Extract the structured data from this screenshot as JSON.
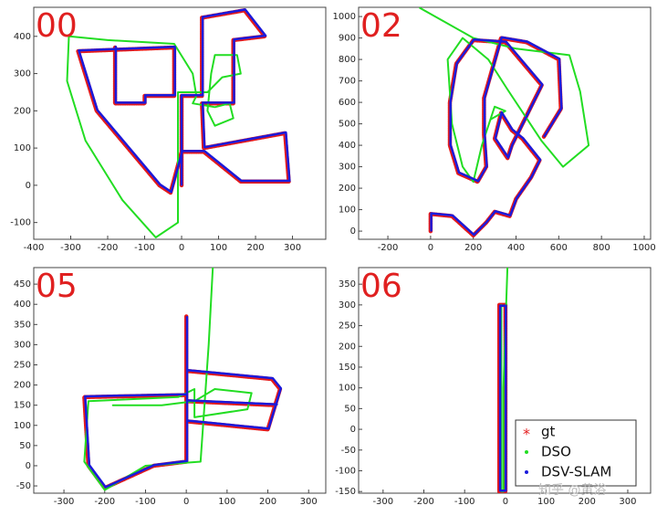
{
  "chart_data": [
    {
      "type": "line",
      "title": "00",
      "xlim": [
        -400,
        390
      ],
      "ylim": [
        -145,
        478
      ],
      "xticks": [
        -400,
        -300,
        -200,
        -100,
        0,
        100,
        200,
        300
      ],
      "yticks": [
        -100,
        0,
        100,
        200,
        300,
        400
      ],
      "series": [
        {
          "name": "gt",
          "color": "#e41a1c",
          "x": [
            0,
            0,
            55,
            55,
            170,
            225,
            140,
            140,
            55,
            60,
            280,
            290,
            160,
            60,
            0,
            -30,
            -60,
            -230,
            -280,
            -20,
            -20,
            -100,
            -100,
            -180,
            -180
          ],
          "values": [
            0,
            240,
            240,
            450,
            470,
            400,
            390,
            220,
            220,
            100,
            140,
            10,
            10,
            90,
            90,
            -20,
            0,
            200,
            360,
            370,
            240,
            240,
            220,
            220,
            370
          ]
        },
        {
          "name": "DSO",
          "color": "#22dd22",
          "x": [
            -70,
            -160,
            -260,
            -310,
            -305,
            -200,
            -20,
            30,
            40,
            30,
            90,
            130,
            140,
            90,
            70,
            80,
            90,
            150,
            160,
            110,
            70,
            -10,
            -10,
            -70
          ],
          "values": [
            -140,
            -40,
            120,
            280,
            400,
            390,
            380,
            300,
            240,
            220,
            210,
            220,
            180,
            160,
            200,
            300,
            350,
            350,
            300,
            290,
            250,
            250,
            -100,
            -140
          ]
        },
        {
          "name": "DSV-SLAM",
          "color": "#1a1adc",
          "x": [
            0,
            0,
            57,
            57,
            172,
            227,
            142,
            142,
            57,
            62,
            282,
            292,
            162,
            62,
            2,
            -28,
            -58,
            -228,
            -278,
            -18,
            -18,
            -98,
            -98,
            -178,
            -178
          ],
          "values": [
            2,
            242,
            242,
            452,
            472,
            402,
            392,
            222,
            222,
            102,
            142,
            12,
            12,
            92,
            92,
            -18,
            2,
            202,
            362,
            372,
            242,
            242,
            222,
            222,
            372
          ]
        }
      ]
    },
    {
      "type": "line",
      "title": "02",
      "xlim": [
        -337,
        1030
      ],
      "ylim": [
        -38,
        1043
      ],
      "xticks": [
        -200,
        0,
        200,
        400,
        600,
        800,
        1000
      ],
      "yticks": [
        0,
        100,
        200,
        300,
        400,
        500,
        600,
        700,
        800,
        900,
        1000
      ],
      "series": [
        {
          "name": "gt",
          "color": "#e41a1c",
          "x": [
            0,
            0,
            100,
            200,
            260,
            300,
            370,
            400,
            470,
            510,
            430,
            380,
            330,
            300,
            360,
            380,
            460,
            520,
            350,
            200,
            120,
            90,
            90,
            130,
            220,
            260,
            250,
            250,
            330,
            450,
            600,
            610,
            530
          ],
          "values": [
            0,
            80,
            70,
            -20,
            40,
            90,
            70,
            150,
            250,
            330,
            430,
            470,
            550,
            430,
            340,
            400,
            560,
            680,
            880,
            890,
            780,
            600,
            400,
            270,
            230,
            300,
            450,
            620,
            900,
            880,
            800,
            570,
            440
          ]
        },
        {
          "name": "DSO",
          "color": "#22dd22",
          "x": [
            -50,
            200,
            400,
            650,
            700,
            740,
            620,
            520,
            360,
            270,
            150,
            80,
            100,
            150,
            200,
            240,
            280,
            300,
            350,
            280
          ],
          "values": [
            1040,
            900,
            850,
            820,
            650,
            400,
            300,
            420,
            660,
            800,
            900,
            800,
            500,
            300,
            230,
            400,
            520,
            580,
            560,
            520
          ]
        },
        {
          "name": "DSV-SLAM",
          "color": "#1a1adc",
          "x": [
            3,
            3,
            103,
            203,
            263,
            303,
            373,
            403,
            473,
            513,
            433,
            383,
            333,
            303,
            363,
            383,
            463,
            523,
            353,
            203,
            123,
            93,
            93,
            133,
            223,
            263,
            253,
            253,
            333,
            453,
            603,
            613,
            533
          ],
          "values": [
            3,
            83,
            73,
            -17,
            43,
            93,
            73,
            153,
            253,
            333,
            433,
            473,
            553,
            433,
            343,
            403,
            563,
            683,
            883,
            893,
            783,
            603,
            403,
            273,
            233,
            303,
            453,
            623,
            903,
            883,
            803,
            573,
            443
          ]
        }
      ]
    },
    {
      "type": "line",
      "title": "05",
      "xlim": [
        -374,
        342
      ],
      "ylim": [
        -68,
        491
      ],
      "xticks": [
        -300,
        -200,
        -100,
        0,
        100,
        200,
        300
      ],
      "yticks": [
        -50,
        0,
        50,
        100,
        150,
        200,
        250,
        300,
        350,
        400,
        450
      ],
      "series": [
        {
          "name": "gt",
          "color": "#e41a1c",
          "x": [
            0,
            0,
            -80,
            -200,
            -240,
            -250,
            0,
            0,
            210,
            230,
            200,
            0,
            0,
            220
          ],
          "values": [
            370,
            10,
            0,
            -55,
            0,
            170,
            175,
            235,
            215,
            190,
            90,
            110,
            160,
            150
          ]
        },
        {
          "name": "DSO",
          "color": "#22dd22",
          "x": [
            65,
            55,
            35,
            -100,
            -200,
            -250,
            -240,
            -20,
            20,
            20,
            150,
            160,
            70,
            20,
            -60,
            -180
          ],
          "values": [
            490,
            300,
            10,
            0,
            -60,
            10,
            160,
            170,
            190,
            120,
            140,
            180,
            190,
            160,
            150,
            150
          ]
        },
        {
          "name": "DSV-SLAM",
          "color": "#1a1adc",
          "x": [
            2,
            2,
            -78,
            -198,
            -238,
            -248,
            2,
            2,
            212,
            232,
            202,
            2,
            2,
            222
          ],
          "values": [
            368,
            12,
            2,
            -53,
            2,
            172,
            177,
            237,
            217,
            192,
            92,
            112,
            162,
            152
          ]
        }
      ]
    },
    {
      "type": "line",
      "title": "06",
      "xlim": [
        -360,
        356
      ],
      "ylim": [
        -154,
        390
      ],
      "xticks": [
        -300,
        -200,
        -100,
        0,
        100,
        200,
        300
      ],
      "yticks": [
        -150,
        -100,
        -50,
        0,
        50,
        100,
        150,
        200,
        250,
        300,
        350
      ],
      "legend": "lower right",
      "series": [
        {
          "name": "gt",
          "color": "#e41a1c",
          "x": [
            0,
            0,
            -15,
            -15,
            0
          ],
          "values": [
            300,
            -150,
            -150,
            300,
            300
          ]
        },
        {
          "name": "DSO",
          "color": "#22dd22",
          "x": [
            5,
            0,
            -5,
            -5,
            -10,
            -10
          ],
          "values": [
            390,
            250,
            100,
            -150,
            -150,
            300
          ]
        },
        {
          "name": "DSV-SLAM",
          "color": "#1a1adc",
          "x": [
            1,
            1,
            -13,
            -13,
            1
          ],
          "values": [
            298,
            -148,
            -148,
            298,
            298
          ]
        }
      ]
    }
  ],
  "watermark": "知乎 @黄浴"
}
